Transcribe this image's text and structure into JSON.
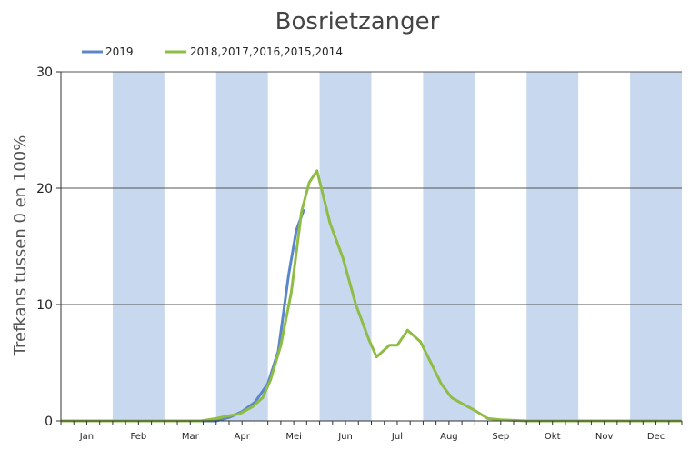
{
  "chart_data": {
    "type": "line",
    "title": "Bosrietzanger",
    "ylabel": "Trefkans tussen 0 en 100%",
    "xlabel": "",
    "ylim": [
      0,
      30
    ],
    "yticks": [
      "0",
      "10",
      "20",
      "30"
    ],
    "months": [
      "Jan",
      "Feb",
      "Mar",
      "Apr",
      "Mei",
      "Jun",
      "Jul",
      "Aug",
      "Sep",
      "Okt",
      "Nov",
      "Dec"
    ],
    "shaded_months": [
      "Feb",
      "Apr",
      "Jun",
      "Aug",
      "Okt",
      "Dec"
    ],
    "grid": true,
    "legend_position": "top-left",
    "series": [
      {
        "name": "2019",
        "color": "#5b86c9",
        "x": [
          0,
          3,
          3.25,
          3.5,
          3.75,
          4,
          4.2,
          4.4,
          4.55,
          4.7
        ],
        "y": [
          0,
          0,
          0.3,
          0.8,
          1.6,
          3.2,
          6.0,
          12.5,
          16.4,
          18.2
        ]
      },
      {
        "name": "2018,2017,2016,2015,2014",
        "color": "#8fbc45",
        "x": [
          0,
          2.7,
          3.0,
          3.2,
          3.45,
          3.7,
          3.9,
          4.05,
          4.25,
          4.45,
          4.65,
          4.8,
          4.95,
          5.2,
          5.45,
          5.7,
          5.95,
          6.1,
          6.35,
          6.5,
          6.7,
          6.95,
          7.15,
          7.35,
          7.55,
          7.75,
          8.0,
          8.25,
          8.5,
          8.75,
          9.0,
          9.25,
          11.99
        ],
        "y": [
          0,
          0,
          0.2,
          0.4,
          0.6,
          1.2,
          2.0,
          3.5,
          6.5,
          11.0,
          18.0,
          20.5,
          21.5,
          17.0,
          14.0,
          10.0,
          7.0,
          5.5,
          6.5,
          6.5,
          7.8,
          6.8,
          5.0,
          3.2,
          2.0,
          1.5,
          0.9,
          0.2,
          0.1,
          0.05,
          0,
          0,
          0
        ]
      }
    ]
  }
}
